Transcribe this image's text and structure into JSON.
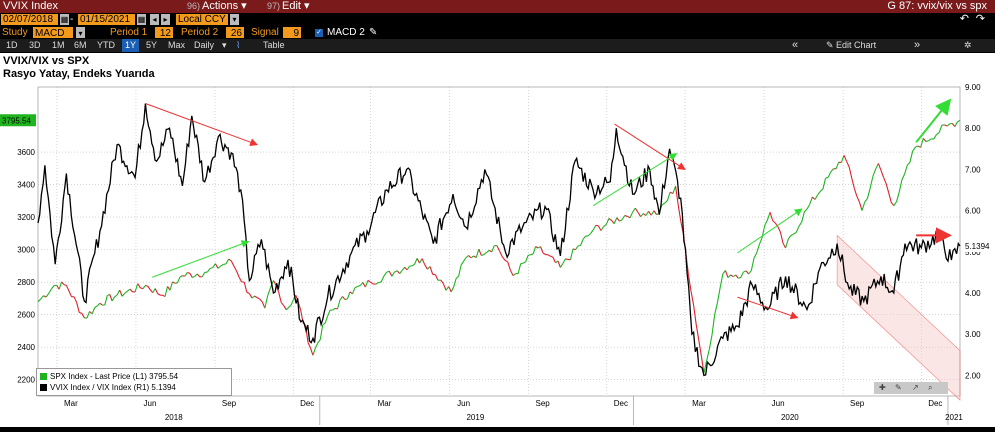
{
  "header": {
    "title": "VVIX Index",
    "actions_num": "96)",
    "actions_label": "Actions",
    "edit_num": "97)",
    "edit_label": "Edit",
    "right_title": "G 87: vvix/vix vs spx"
  },
  "controls": {
    "start_date": "02/07/2018",
    "end_date": "01/15/2021",
    "currency": "Local CCY",
    "study_label": "Study",
    "study_value": "MACD",
    "period1_label": "Period 1",
    "period1_value": "12",
    "period2_label": "Period 2",
    "period2_value": "26",
    "signal_label": "Signal",
    "signal_value": "9",
    "macd2_label": "MACD 2"
  },
  "toolbar": {
    "ranges": [
      "1D",
      "3D",
      "1M",
      "6M",
      "YTD",
      "1Y",
      "5Y",
      "Max"
    ],
    "selected_range": "1Y",
    "frequency": "Daily",
    "table_label": "Table",
    "edit_chart_label": "Edit Chart"
  },
  "colors": {
    "spx": "#1fb41f",
    "ratio": "#000000",
    "header_bg": "#7a1a1a",
    "field_bg": "#f39a1c",
    "up": "#1fb41f",
    "down": "#e0202a",
    "arrow_green": "#33dd33",
    "arrow_red": "#ee3333",
    "channel": "#f7c7c7"
  },
  "chart_data": {
    "type": "line",
    "title": "VVIX/VIX vs SPX",
    "subtitle": "Rasyo Yatay, Endeks Yuarıda",
    "left_axis": {
      "ylim": [
        2100,
        4000
      ],
      "ticks": [
        2200,
        2400,
        2600,
        2800,
        3000,
        3200,
        3400,
        3600
      ],
      "current_label": "3795.54"
    },
    "right_axis": {
      "ylim": [
        1.5,
        9.0
      ],
      "ticks": [
        "2.00",
        "3.00",
        "4.00",
        "5.00",
        "6.00",
        "7.00",
        "8.00",
        "9.00"
      ],
      "current_label": "5.1394"
    },
    "x_axis": {
      "months": [
        "Mar",
        "Jun",
        "Sep",
        "Dec",
        "Mar",
        "Jun",
        "Sep",
        "Dec",
        "Mar",
        "Jun",
        "Sep",
        "Dec"
      ],
      "years": [
        "2018",
        "2019",
        "2020",
        "2021"
      ],
      "range": [
        "2018-02-07",
        "2021-01-15"
      ]
    },
    "series": [
      {
        "name": "SPX Index - Last Price (L1)",
        "last": "3795.54",
        "axis": "left",
        "points": [
          [
            "2018-02-07",
            2680
          ],
          [
            "2018-02-26",
            2780
          ],
          [
            "2018-03-12",
            2780
          ],
          [
            "2018-04-02",
            2580
          ],
          [
            "2018-04-20",
            2670
          ],
          [
            "2018-05-10",
            2720
          ],
          [
            "2018-06-12",
            2780
          ],
          [
            "2018-07-02",
            2720
          ],
          [
            "2018-07-25",
            2840
          ],
          [
            "2018-08-20",
            2860
          ],
          [
            "2018-09-20",
            2930
          ],
          [
            "2018-10-11",
            2730
          ],
          [
            "2018-10-29",
            2640
          ],
          [
            "2018-11-08",
            2810
          ],
          [
            "2018-11-23",
            2630
          ],
          [
            "2018-12-04",
            2720
          ],
          [
            "2018-12-24",
            2350
          ],
          [
            "2019-01-10",
            2590
          ],
          [
            "2019-02-05",
            2740
          ],
          [
            "2019-03-01",
            2800
          ],
          [
            "2019-04-01",
            2870
          ],
          [
            "2019-04-30",
            2945
          ],
          [
            "2019-06-03",
            2740
          ],
          [
            "2019-06-20",
            2950
          ],
          [
            "2019-07-26",
            3025
          ],
          [
            "2019-08-14",
            2840
          ],
          [
            "2019-09-12",
            3010
          ],
          [
            "2019-10-08",
            2890
          ],
          [
            "2019-11-15",
            3120
          ],
          [
            "2019-12-31",
            3230
          ],
          [
            "2020-01-31",
            3225
          ],
          [
            "2020-02-19",
            3390
          ],
          [
            "2020-03-23",
            2240
          ],
          [
            "2020-04-14",
            2850
          ],
          [
            "2020-05-14",
            2850
          ],
          [
            "2020-06-08",
            3230
          ],
          [
            "2020-06-26",
            3010
          ],
          [
            "2020-07-21",
            3250
          ],
          [
            "2020-09-02",
            3580
          ],
          [
            "2020-09-23",
            3240
          ],
          [
            "2020-10-12",
            3530
          ],
          [
            "2020-10-30",
            3270
          ],
          [
            "2020-11-24",
            3630
          ],
          [
            "2020-12-31",
            3760
          ],
          [
            "2021-01-15",
            3795
          ]
        ]
      },
      {
        "name": "VVIX Index / VIX Index (R1)",
        "last": "5.1394",
        "axis": "right",
        "points": [
          [
            "2018-02-07",
            5.7
          ],
          [
            "2018-02-15",
            7.1
          ],
          [
            "2018-02-27",
            4.7
          ],
          [
            "2018-03-12",
            6.9
          ],
          [
            "2018-04-02",
            3.8
          ],
          [
            "2018-04-20",
            5.5
          ],
          [
            "2018-05-10",
            7.6
          ],
          [
            "2018-05-31",
            6.8
          ],
          [
            "2018-06-12",
            8.6
          ],
          [
            "2018-06-25",
            7.2
          ],
          [
            "2018-07-10",
            8.0
          ],
          [
            "2018-07-25",
            6.6
          ],
          [
            "2018-08-05",
            8.3
          ],
          [
            "2018-08-20",
            6.7
          ],
          [
            "2018-09-05",
            7.8
          ],
          [
            "2018-09-20",
            7.4
          ],
          [
            "2018-10-01",
            6.5
          ],
          [
            "2018-10-11",
            4.3
          ],
          [
            "2018-10-25",
            5.3
          ],
          [
            "2018-11-08",
            4.0
          ],
          [
            "2018-11-25",
            4.8
          ],
          [
            "2018-12-10",
            3.3
          ],
          [
            "2018-12-24",
            2.9
          ],
          [
            "2019-01-10",
            3.9
          ],
          [
            "2019-02-05",
            4.9
          ],
          [
            "2019-02-25",
            5.5
          ],
          [
            "2019-03-20",
            6.5
          ],
          [
            "2019-04-12",
            7.0
          ],
          [
            "2019-05-13",
            5.2
          ],
          [
            "2019-06-05",
            6.4
          ],
          [
            "2019-06-20",
            5.6
          ],
          [
            "2019-07-12",
            7.0
          ],
          [
            "2019-08-05",
            5.0
          ],
          [
            "2019-08-25",
            5.6
          ],
          [
            "2019-09-20",
            6.1
          ],
          [
            "2019-10-08",
            4.9
          ],
          [
            "2019-10-25",
            7.2
          ],
          [
            "2019-11-15",
            6.5
          ],
          [
            "2019-12-05",
            6.7
          ],
          [
            "2019-12-12",
            8.0
          ],
          [
            "2019-12-31",
            6.4
          ],
          [
            "2020-01-20",
            7.0
          ],
          [
            "2020-01-31",
            5.9
          ],
          [
            "2020-02-12",
            7.5
          ],
          [
            "2020-02-25",
            6.3
          ],
          [
            "2020-03-09",
            3.0
          ],
          [
            "2020-03-23",
            2.0
          ],
          [
            "2020-04-14",
            2.9
          ],
          [
            "2020-05-01",
            3.2
          ],
          [
            "2020-05-18",
            4.2
          ],
          [
            "2020-06-05",
            3.6
          ],
          [
            "2020-06-26",
            4.4
          ],
          [
            "2020-07-21",
            3.6
          ],
          [
            "2020-08-05",
            4.6
          ],
          [
            "2020-08-25",
            5.2
          ],
          [
            "2020-09-08",
            4.1
          ],
          [
            "2020-09-25",
            3.8
          ],
          [
            "2020-10-15",
            4.4
          ],
          [
            "2020-10-30",
            4.0
          ],
          [
            "2020-11-12",
            5.2
          ],
          [
            "2020-12-01",
            5.1
          ],
          [
            "2020-12-20",
            5.4
          ],
          [
            "2021-01-05",
            4.8
          ],
          [
            "2021-01-15",
            5.14
          ]
        ]
      }
    ],
    "annotations": [
      {
        "type": "arrow",
        "color": "red",
        "from": [
          "2018-06-12",
          8.6
        ],
        "to": [
          "2018-10-20",
          7.6
        ],
        "axis": "right"
      },
      {
        "type": "arrow",
        "color": "green",
        "from": [
          "2018-06-20",
          2830
        ],
        "to": [
          "2018-10-10",
          3050
        ],
        "axis": "left"
      },
      {
        "type": "arrow",
        "color": "red",
        "from": [
          "2019-12-10",
          8.1
        ],
        "to": [
          "2020-03-01",
          7.0
        ],
        "axis": "right"
      },
      {
        "type": "arrow",
        "color": "green",
        "from": [
          "2019-11-15",
          3270
        ],
        "to": [
          "2020-02-20",
          3590
        ],
        "axis": "left"
      },
      {
        "type": "arrow",
        "color": "green",
        "from": [
          "2020-05-01",
          2980
        ],
        "to": [
          "2020-07-15",
          3250
        ],
        "axis": "left"
      },
      {
        "type": "arrow",
        "color": "red",
        "from": [
          "2020-05-01",
          3.9
        ],
        "to": [
          "2020-07-10",
          3.4
        ],
        "axis": "right"
      },
      {
        "type": "arrow",
        "color": "green",
        "from": [
          "2020-11-25",
          3660
        ],
        "to": [
          "2021-01-20",
          3920
        ],
        "axis": "left"
      },
      {
        "type": "arrow",
        "color": "red",
        "from": [
          "2020-11-25",
          5.4
        ],
        "to": [
          "2021-01-20",
          5.4
        ],
        "axis": "right"
      },
      {
        "type": "channel",
        "color": "red",
        "from": [
          "2020-08-25",
          5.4
        ],
        "to": [
          "2021-02-05",
          2.6
        ],
        "width": 1.2,
        "axis": "right"
      }
    ],
    "legend": "bottom-left",
    "grid": true
  }
}
